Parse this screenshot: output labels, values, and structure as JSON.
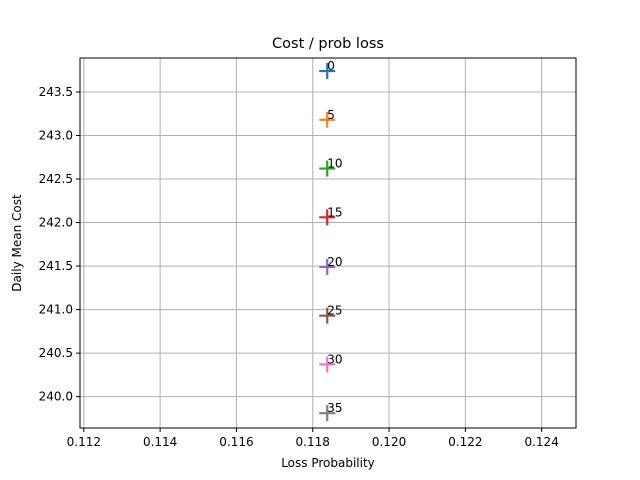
{
  "chart_data": {
    "type": "scatter",
    "title": "Cost / prob loss",
    "xlabel": "Loss Probability",
    "ylabel": "Daily Mean Cost",
    "xlim": [
      0.1119,
      0.1249
    ],
    "ylim": [
      239.64,
      243.89
    ],
    "grid": true,
    "marker": "+",
    "x_ticks": [
      0.112,
      0.114,
      0.116,
      0.118,
      0.12,
      0.122,
      0.124
    ],
    "x_tick_labels": [
      "0.112",
      "0.114",
      "0.116",
      "0.118",
      "0.120",
      "0.122",
      "0.124"
    ],
    "y_ticks": [
      240.0,
      240.5,
      241.0,
      241.5,
      242.0,
      242.5,
      243.0,
      243.5
    ],
    "y_tick_labels": [
      "240.0",
      "240.5",
      "241.0",
      "241.5",
      "242.0",
      "242.5",
      "243.0",
      "243.5"
    ],
    "points": [
      {
        "label": "0",
        "x": 0.11838,
        "y": 243.74,
        "color": "#1f77b4"
      },
      {
        "label": "5",
        "x": 0.11838,
        "y": 243.18,
        "color": "#ff7f0e"
      },
      {
        "label": "10",
        "x": 0.11838,
        "y": 242.62,
        "color": "#2ca02c"
      },
      {
        "label": "15",
        "x": 0.11838,
        "y": 242.06,
        "color": "#d62728"
      },
      {
        "label": "20",
        "x": 0.11838,
        "y": 241.49,
        "color": "#9467bd"
      },
      {
        "label": "25",
        "x": 0.11838,
        "y": 240.93,
        "color": "#8c564b"
      },
      {
        "label": "30",
        "x": 0.11838,
        "y": 240.37,
        "color": "#e377c2"
      },
      {
        "label": "35",
        "x": 0.11838,
        "y": 239.81,
        "color": "#7f7f7f"
      }
    ]
  }
}
